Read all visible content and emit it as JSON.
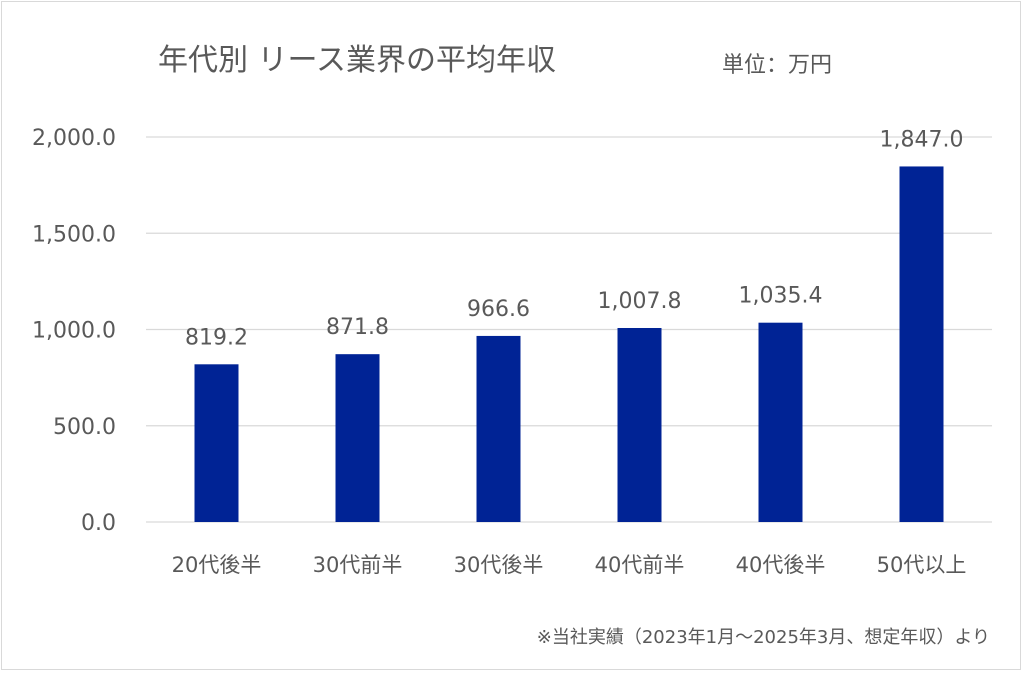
{
  "chart_data": {
    "type": "bar",
    "title": "年代別 リース業界の平均年収",
    "unit_label": "単位：万円",
    "categories": [
      "20代後半",
      "30代前半",
      "30代後半",
      "40代前半",
      "40代後半",
      "50代以上"
    ],
    "values": [
      819.2,
      871.8,
      966.6,
      1007.8,
      1035.4,
      1847.0
    ],
    "data_labels": [
      "819.2",
      "871.8",
      "966.6",
      "1,007.8",
      "1,035.4",
      "1,847.0"
    ],
    "y_ticks": [
      0,
      500,
      1000,
      1500,
      2000
    ],
    "y_tick_labels": [
      "0.0",
      "500.0",
      "1,000.0",
      "1,500.0",
      "2,000.0"
    ],
    "ylim": [
      0,
      2000
    ],
    "xlabel": "",
    "ylabel": "",
    "grid": true,
    "legend": "none",
    "bar_color": "#002395",
    "footnote": "※当社実績（2023年1月～2025年3月、想定年収）より"
  }
}
